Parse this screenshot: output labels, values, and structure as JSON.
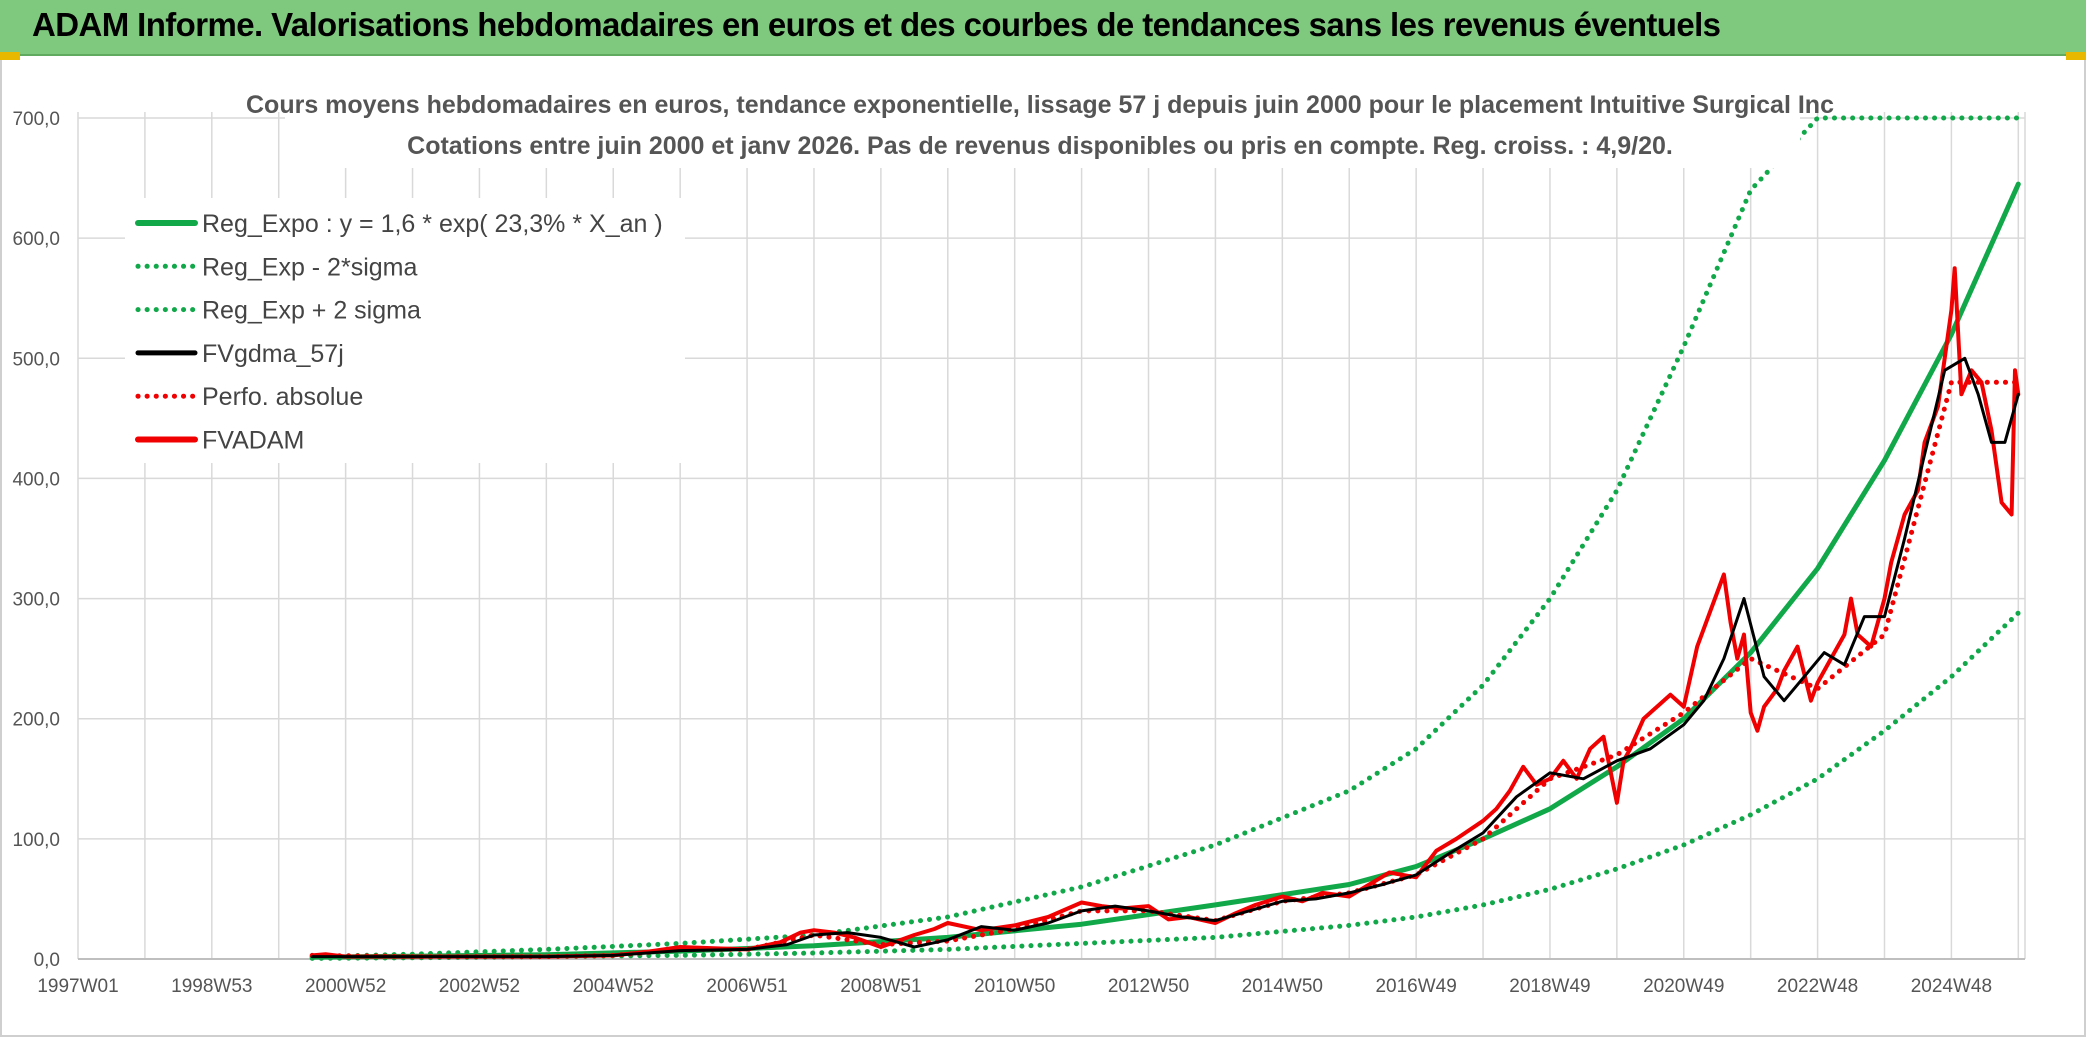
{
  "banner": {
    "title": "ADAM Informe. Valorisations hebdomadaires en euros et des courbes de tendances sans les revenus éventuels"
  },
  "colors": {
    "banner_bg": "#7fc97f",
    "green": "#11a84a",
    "red": "#f00000",
    "black": "#000000",
    "grid": "#d9d9d9"
  },
  "chart_data": {
    "type": "line",
    "title": "Cours moyens hebdomadaires en euros, tendance exponentielle, lissage 57 j depuis juin 2000 pour le placement Intuitive Surgical Inc",
    "subtitle": "Cotations entre juin 2000 et janv 2026. Pas de revenus disponibles ou pris en compte. Reg. croiss. : 4,9/20.",
    "xlabel": "",
    "ylabel": "",
    "ylim": [
      0,
      700
    ],
    "xlim": [
      1997.0,
      2026.1
    ],
    "y_ticks": [
      "0,0",
      "100,0",
      "200,0",
      "300,0",
      "400,0",
      "500,0",
      "600,0",
      "700,0"
    ],
    "x_ticks": [
      {
        "label": "1997W01",
        "x": 1997.0
      },
      {
        "label": "1998W53",
        "x": 1999.0
      },
      {
        "label": "2000W52",
        "x": 2001.0
      },
      {
        "label": "2002W52",
        "x": 2003.0
      },
      {
        "label": "2004W52",
        "x": 2005.0
      },
      {
        "label": "2006W51",
        "x": 2007.0
      },
      {
        "label": "2008W51",
        "x": 2009.0
      },
      {
        "label": "2010W50",
        "x": 2011.0
      },
      {
        "label": "2012W50",
        "x": 2013.0
      },
      {
        "label": "2014W50",
        "x": 2015.0
      },
      {
        "label": "2016W49",
        "x": 2017.0
      },
      {
        "label": "2018W49",
        "x": 2019.0
      },
      {
        "label": "2020W49",
        "x": 2021.0
      },
      {
        "label": "2022W48",
        "x": 2023.0
      },
      {
        "label": "2024W48",
        "x": 2025.0
      }
    ],
    "grid": true,
    "legend_position": "top-left",
    "series": [
      {
        "name": "Reg_Expo : y = 1,6 * exp( 23,3% *  X_an )",
        "color": "#11a84a",
        "style": "solid",
        "x": [
          2000.5,
          2002,
          2004,
          2006,
          2008,
          2010,
          2012,
          2014,
          2016,
          2017,
          2018,
          2019,
          2020,
          2021,
          2022,
          2023,
          2024,
          2025,
          2026
        ],
        "y": [
          1.6,
          2.3,
          3.6,
          6.6,
          11,
          18,
          29,
          45,
          62,
          77,
          100,
          125,
          160,
          200,
          255,
          325,
          415,
          520,
          645
        ]
      },
      {
        "name": "Reg_Exp - 2*sigma",
        "color": "#11a84a",
        "style": "dotted",
        "x": [
          2000.5,
          2002,
          2004,
          2006,
          2008,
          2010,
          2012,
          2014,
          2016,
          2017,
          2018,
          2019,
          2020,
          2021,
          2022,
          2023,
          2024,
          2025,
          2026
        ],
        "y": [
          0.5,
          1,
          2,
          3,
          5,
          8,
          13,
          18,
          28,
          35,
          45,
          58,
          75,
          95,
          120,
          150,
          190,
          235,
          288
        ]
      },
      {
        "name": "Reg_Exp + 2 sigma",
        "color": "#11a84a",
        "style": "dotted",
        "x": [
          2000.5,
          2002,
          2004,
          2006,
          2008,
          2010,
          2012,
          2014,
          2016,
          2017,
          2018,
          2019,
          2020,
          2021,
          2022,
          2023,
          2024,
          2025,
          2026
        ],
        "y": [
          2,
          4,
          8,
          13,
          20,
          35,
          60,
          95,
          140,
          175,
          228,
          300,
          390,
          510,
          640,
          700,
          700,
          700,
          700
        ]
      },
      {
        "name": "FVgdma_57j",
        "color": "#000000",
        "style": "solid",
        "x": [
          2000.5,
          2002,
          2004,
          2005,
          2006,
          2007,
          2007.6,
          2008,
          2008.5,
          2009,
          2009.5,
          2010,
          2010.5,
          2011,
          2011.5,
          2012,
          2012.5,
          2013,
          2013.5,
          2014,
          2014.5,
          2015,
          2015.5,
          2016,
          2016.5,
          2017,
          2017.5,
          2018,
          2018.5,
          2019,
          2019.5,
          2020,
          2020.5,
          2021,
          2021.3,
          2021.6,
          2021.9,
          2022.2,
          2022.5,
          2022.8,
          2023.1,
          2023.4,
          2023.7,
          2024,
          2024.3,
          2024.6,
          2024.9,
          2025.2,
          2025.4,
          2025.6,
          2025.8,
          2026
        ],
        "y": [
          2,
          2,
          2,
          3,
          7,
          8,
          12,
          20,
          22,
          18,
          10,
          16,
          27,
          24,
          30,
          40,
          44,
          40,
          35,
          32,
          40,
          48,
          50,
          55,
          62,
          70,
          88,
          105,
          135,
          155,
          150,
          165,
          175,
          195,
          215,
          250,
          300,
          235,
          215,
          235,
          255,
          245,
          285,
          285,
          350,
          420,
          490,
          500,
          470,
          430,
          430,
          470
        ]
      },
      {
        "name": "Perfo. absolue",
        "color": "#f00000",
        "style": "dotted",
        "x": [
          2000.5,
          2002,
          2004,
          2005,
          2006,
          2007,
          2008,
          2009,
          2010,
          2011,
          2012,
          2013,
          2014,
          2015,
          2016,
          2017,
          2018,
          2019,
          2020,
          2021,
          2022,
          2023,
          2024,
          2025,
          2026
        ],
        "y": [
          3,
          2,
          2,
          3,
          8,
          8,
          20,
          12,
          15,
          25,
          40,
          40,
          32,
          48,
          55,
          70,
          100,
          150,
          170,
          205,
          250,
          225,
          270,
          480,
          480
        ]
      },
      {
        "name": "FVADAM",
        "color": "#f00000",
        "style": "solid",
        "x": [
          2000.5,
          2000.7,
          2001,
          2002,
          2003,
          2004,
          2005,
          2005.5,
          2006,
          2006.5,
          2007,
          2007.5,
          2007.8,
          2008,
          2008.3,
          2008.6,
          2009,
          2009.2,
          2009.5,
          2009.8,
          2010,
          2010.5,
          2011,
          2011.5,
          2012,
          2012.3,
          2012.6,
          2013,
          2013.3,
          2013.6,
          2014,
          2014.3,
          2014.6,
          2015,
          2015.3,
          2015.6,
          2016,
          2016.3,
          2016.6,
          2017,
          2017.3,
          2017.6,
          2018,
          2018.2,
          2018.4,
          2018.6,
          2018.8,
          2019,
          2019.2,
          2019.4,
          2019.6,
          2019.8,
          2020,
          2020.1,
          2020.2,
          2020.4,
          2020.6,
          2020.8,
          2021,
          2021.2,
          2021.4,
          2021.6,
          2021.7,
          2021.8,
          2021.9,
          2022,
          2022.1,
          2022.2,
          2022.4,
          2022.5,
          2022.7,
          2022.9,
          2023.0,
          2023.2,
          2023.4,
          2023.5,
          2023.6,
          2023.8,
          2024.0,
          2024.1,
          2024.3,
          2024.5,
          2024.6,
          2024.8,
          2024.9,
          2025.0,
          2025.05,
          2025.15,
          2025.3,
          2025.45,
          2025.6,
          2025.75,
          2025.9,
          2025.95,
          2026.0
        ],
        "y": [
          3,
          4,
          2,
          2,
          2,
          2,
          3,
          6,
          10,
          9,
          8,
          14,
          22,
          24,
          22,
          18,
          10,
          14,
          20,
          25,
          30,
          24,
          28,
          35,
          47,
          44,
          42,
          44,
          33,
          35,
          30,
          38,
          45,
          52,
          48,
          55,
          52,
          62,
          72,
          68,
          90,
          100,
          115,
          125,
          140,
          160,
          145,
          150,
          165,
          150,
          175,
          185,
          130,
          165,
          175,
          200,
          210,
          220,
          210,
          260,
          290,
          320,
          280,
          250,
          270,
          205,
          190,
          210,
          225,
          240,
          260,
          215,
          230,
          250,
          270,
          300,
          270,
          260,
          300,
          330,
          370,
          390,
          430,
          460,
          500,
          540,
          575,
          470,
          490,
          480,
          440,
          380,
          370,
          490,
          470
        ]
      }
    ]
  }
}
